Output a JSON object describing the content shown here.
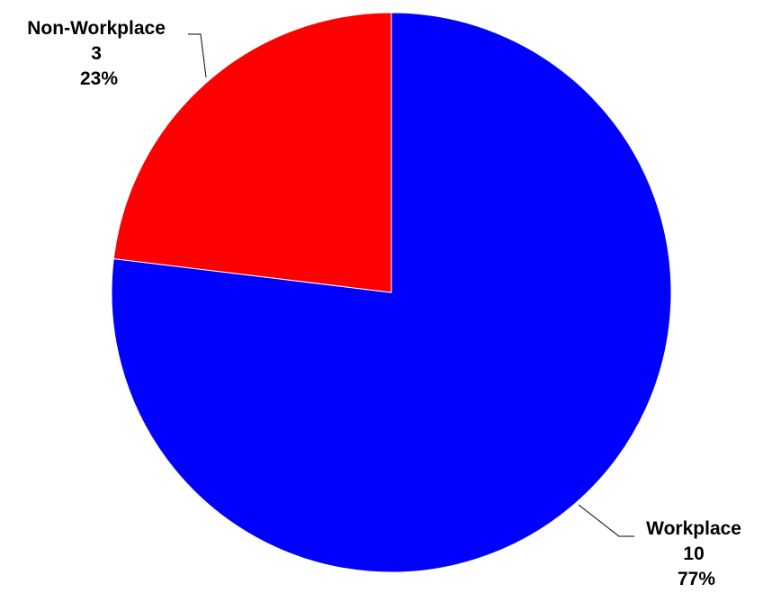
{
  "chart_data": {
    "type": "pie",
    "title": "",
    "start_angle_deg": 0,
    "direction": "clockwise",
    "slices": [
      {
        "label": "Workplace",
        "value": 10,
        "percent": "77%",
        "color": "#0000FF"
      },
      {
        "label": "Non-Workplace",
        "value": 3,
        "percent": "23%",
        "color": "#FF0000"
      }
    ]
  }
}
